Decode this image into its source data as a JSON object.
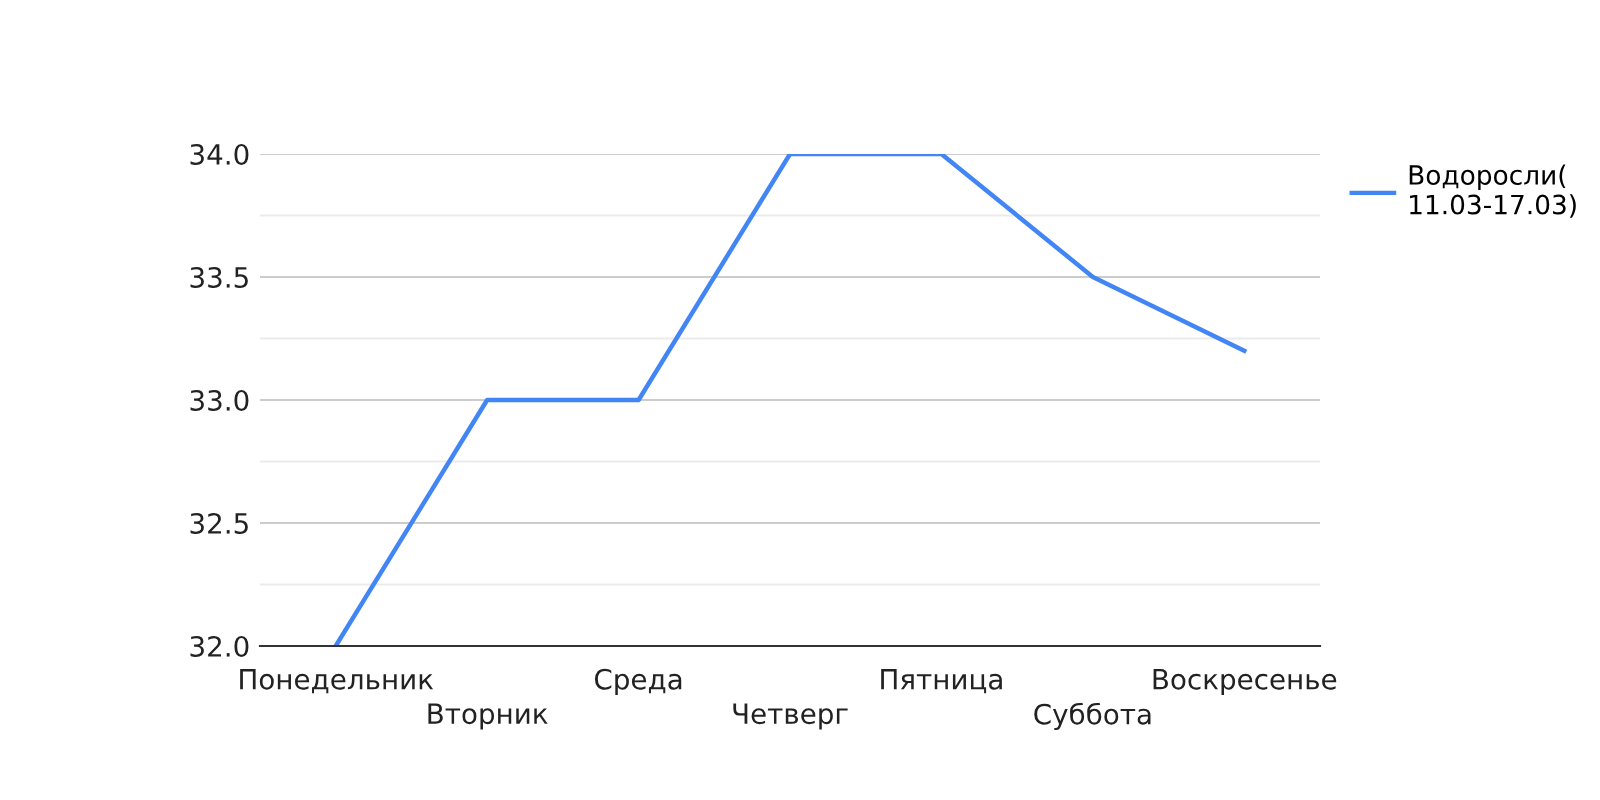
{
  "chart_data": {
    "type": "line",
    "categories": [
      "Понедельник",
      "Вторник",
      "Среда",
      "Четверг",
      "Пятница",
      "Суббота",
      "Воскресенье"
    ],
    "series": [
      {
        "name": "Водоросли( 11.03-17.03)",
        "color": "#4285f4",
        "values": [
          32,
          33,
          33,
          34,
          34,
          33.5,
          33.2
        ]
      }
    ],
    "ylim": [
      32,
      34
    ],
    "yticks": [
      {
        "value": 32,
        "label": "32.0"
      },
      {
        "value": 32.5,
        "label": "32.5"
      },
      {
        "value": 33,
        "label": "33.0"
      },
      {
        "value": 33.5,
        "label": "33.5"
      },
      {
        "value": 34,
        "label": "34.0"
      }
    ],
    "grid": "y",
    "legend": "right"
  }
}
